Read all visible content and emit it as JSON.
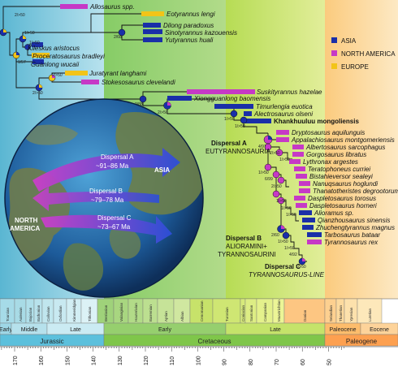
{
  "legend": {
    "items": [
      {
        "label": "ASIA",
        "color": "#1a2fa8"
      },
      {
        "label": "NORTH AMERICA",
        "color": "#c639c6"
      },
      {
        "label": "EUROPE",
        "color": "#f2c418"
      }
    ]
  },
  "taxa": [
    "Allosaurus spp.",
    "Eotyrannus lengi",
    "Dilong paradoxus",
    "Sinotyrannus kazouensis",
    "Yutyrannus huali",
    "Kileskus aristocus",
    "Proceratosaurus bradleyi",
    "Guanlong wucaii",
    "Juratyrant langhami",
    "Stokesosaurus clevelandi",
    "Suskityrannus hazelae",
    "Xiongguanlong baomensis",
    "Timurlengia euotica",
    "Alectrosaurus olseni",
    "Khankhuuluu mongoliensis",
    "Dryptosaurus aquilunguis",
    "Appalachiosaurus montgomeriensis",
    "Albertosaurus sarcophagus",
    "Gorgosaurus libratus",
    "Lythronax argestes",
    "Teratophoneus curriei",
    "Bistahieversor sealeyi",
    "Nanuqsaurus hoglundi",
    "Thanatotheristes degrootorum",
    "Daspletosaurus torosus",
    "Daspletosaurus horneri",
    "Alioramus sp.",
    "Qianzhousaurus sinensis",
    "Zhuchengtyrannus magnus",
    "Tarbosaurus bataar",
    "Tyrannosaurus rex"
  ],
  "node_labels": [
    "2/>50",
    "1/>50",
    "1/>50",
    "2/68",
    "1/57",
    "2/>50",
    "2/>50",
    "2/88",
    "2/>50",
    "1/>50",
    "1/>50",
    "4/97",
    "2/>50",
    "1/>50",
    "1/>50",
    "6/99",
    "2/>50",
    "1/>50",
    "1/>50",
    "1/>50",
    "2/60",
    "1/>50",
    "1/>50",
    "4/92",
    "1/>50"
  ],
  "clade_labels": {
    "a_title": "Dispersal A",
    "a_name": "EUTYRANNOSAURIA",
    "b_title": "Dispersal B",
    "b_name1": "ALIORAMINI+",
    "b_name2": "TYRANNOSAURINI",
    "c_title": "Dispersal C",
    "c_name": "TYRANNOSAURUS-LINE"
  },
  "dispersals": [
    {
      "title": "Dispersal A",
      "range": "~91–86 Ma"
    },
    {
      "title": "Dispersal B",
      "range": "~79–78 Ma"
    },
    {
      "title": "Dispersal C",
      "range": "~73–67 Ma"
    }
  ],
  "map": {
    "asia": "ASIA",
    "north_america1": "NORTH",
    "north_america2": "AMERICA"
  },
  "stages": [
    "Toarcian",
    "Aalenian",
    "Bajocian",
    "Bathonian",
    "Callovian",
    "Oxfordian",
    "Kimmeridgian",
    "Tithonian",
    "Berriasian",
    "Valanginian",
    "Hauterivian",
    "Barremian",
    "Aptian",
    "Albian",
    "Cenomanian",
    "Turonian",
    "Coniacian",
    "Santonian",
    "Campanian",
    "Maastrichtian",
    "Danian",
    "Selandian",
    "Thanetian",
    "Ypresian",
    "Lutetian"
  ],
  "epochs": [
    "Early",
    "Middle",
    "Late",
    "Early",
    "Late",
    "Paleocene",
    "Eocene"
  ],
  "periods": [
    "Jurassic",
    "Cretaceous",
    "Paleogene"
  ],
  "ages": [
    "170",
    "160",
    "150",
    "140",
    "130",
    "120",
    "110",
    "100",
    "90",
    "80",
    "70",
    "60",
    "50"
  ]
}
